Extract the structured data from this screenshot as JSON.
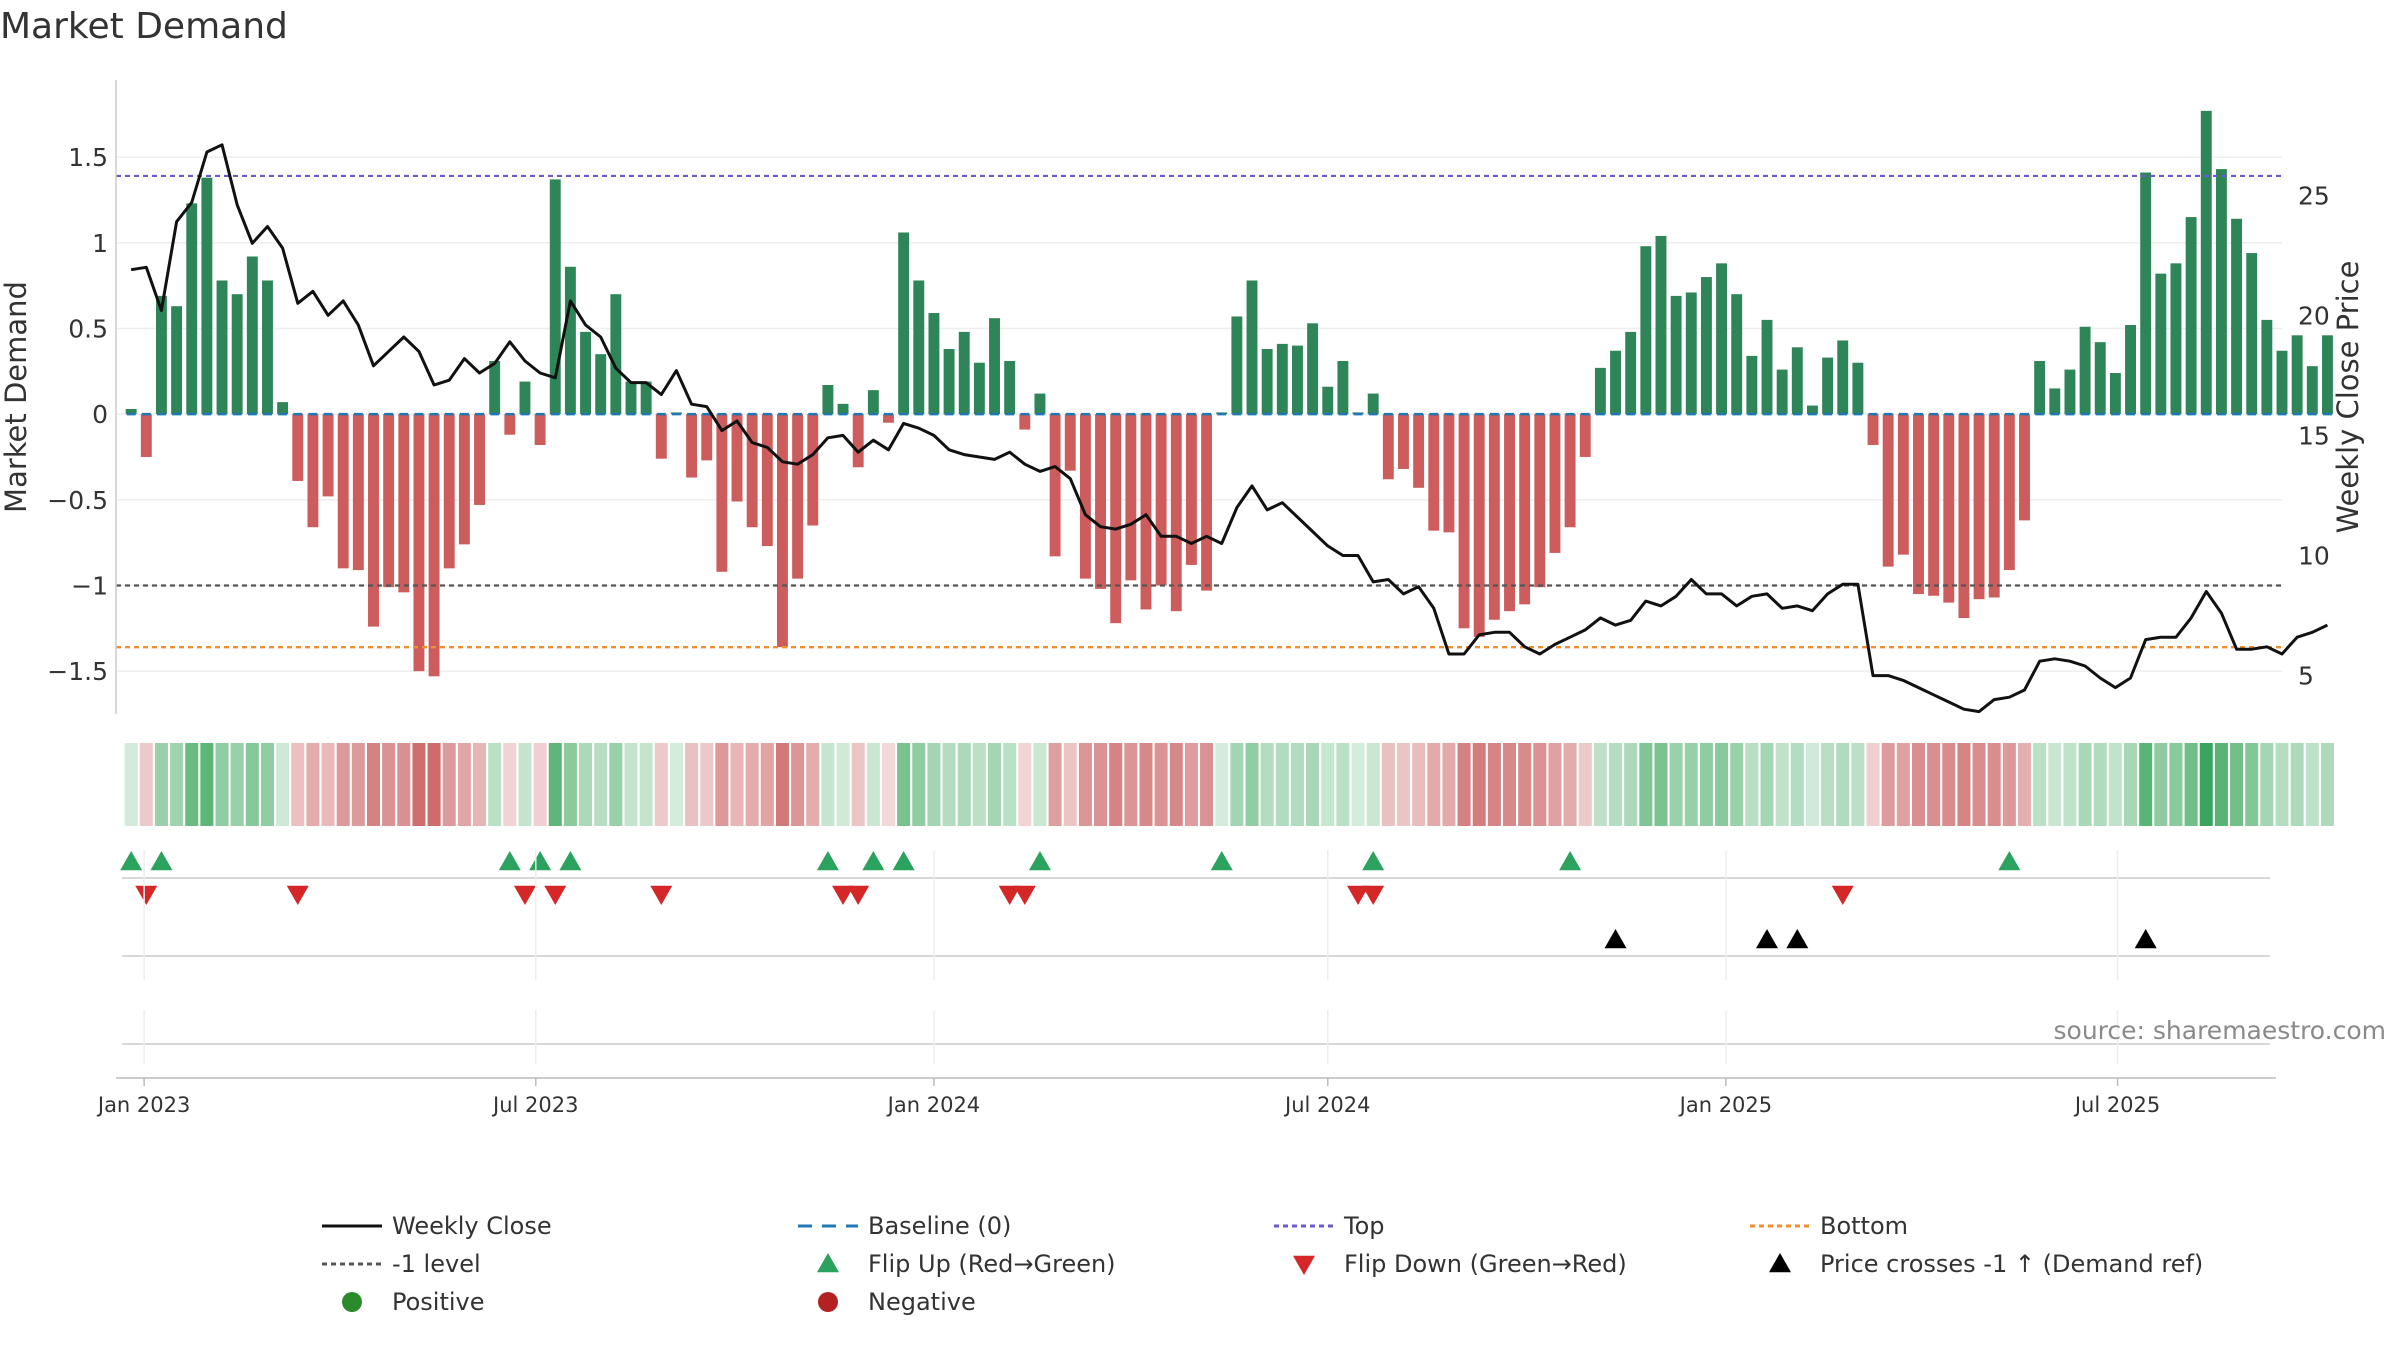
{
  "chart_data": {
    "type": "bar",
    "title": "Market Demand",
    "ylabel": "Market Demand",
    "y2label": "Weekly Close Price",
    "ylim": [
      -1.75,
      1.95
    ],
    "y2lim": [
      3.4,
      29.8
    ],
    "yticks": [
      {
        "v": 1.5,
        "label": "1.5"
      },
      {
        "v": 1,
        "label": "1"
      },
      {
        "v": 0.5,
        "label": "0.5"
      },
      {
        "v": 0,
        "label": "0"
      },
      {
        "v": -0.5,
        "label": "−0.5"
      },
      {
        "v": -1,
        "label": "−1"
      },
      {
        "v": -1.5,
        "label": "−1.5"
      }
    ],
    "y2ticks": [
      {
        "v": 25,
        "label": "25"
      },
      {
        "v": 20,
        "label": "20"
      },
      {
        "v": 15,
        "label": "15"
      },
      {
        "v": 10,
        "label": "10"
      },
      {
        "v": 5,
        "label": "5"
      }
    ],
    "xrange": [
      "2022-12-19",
      "2025-09-15"
    ],
    "xticks": [
      {
        "date": "2023-01-01",
        "label": "Jan 2023"
      },
      {
        "date": "2023-07-01",
        "label": "Jul 2023"
      },
      {
        "date": "2024-01-01",
        "label": "Jan 2024"
      },
      {
        "date": "2024-07-01",
        "label": "Jul 2024"
      },
      {
        "date": "2025-01-01",
        "label": "Jan 2025"
      },
      {
        "date": "2025-07-01",
        "label": "Jul 2025"
      }
    ],
    "start_week": "2022-12-26",
    "demand": [
      0.03,
      -0.25,
      0.69,
      0.63,
      1.23,
      1.38,
      0.78,
      0.7,
      0.92,
      0.78,
      0.07,
      -0.39,
      -0.66,
      -0.48,
      -0.9,
      -0.91,
      -1.24,
      -1.01,
      -1.04,
      -1.5,
      -1.53,
      -0.9,
      -0.76,
      -0.53,
      0.31,
      -0.12,
      0.19,
      -0.18,
      1.37,
      0.86,
      0.48,
      0.35,
      0.7,
      0.19,
      0.19,
      -0.26,
      0.01,
      -0.37,
      -0.27,
      -0.92,
      -0.51,
      -0.66,
      -0.77,
      -1.36,
      -0.96,
      -0.65,
      0.17,
      0.06,
      -0.31,
      0.14,
      -0.05,
      1.06,
      0.78,
      0.59,
      0.38,
      0.48,
      0.3,
      0.56,
      0.31,
      -0.09,
      0.12,
      -0.83,
      -0.33,
      -0.96,
      -1.02,
      -1.22,
      -0.97,
      -1.14,
      -1.0,
      -1.15,
      -0.88,
      -1.03,
      0.01,
      0.57,
      0.78,
      0.38,
      0.41,
      0.4,
      0.53,
      0.16,
      0.31,
      0.01,
      0.12,
      -0.38,
      -0.32,
      -0.43,
      -0.68,
      -0.69,
      -1.25,
      -1.3,
      -1.2,
      -1.15,
      -1.11,
      -1.01,
      -0.81,
      -0.66,
      -0.25,
      0.27,
      0.37,
      0.48,
      0.98,
      1.04,
      0.69,
      0.71,
      0.8,
      0.88,
      0.7,
      0.34,
      0.55,
      0.26,
      0.39,
      0.05,
      0.33,
      0.43,
      0.3,
      -0.18,
      -0.89,
      -0.82,
      -1.05,
      -1.06,
      -1.1,
      -1.19,
      -1.08,
      -1.07,
      -0.91,
      -0.62,
      0.31,
      0.15,
      0.26,
      0.51,
      0.42,
      0.24,
      0.52,
      1.41,
      0.82,
      0.88,
      1.15,
      1.77,
      1.43,
      1.14,
      0.94,
      0.55,
      0.37,
      0.46,
      0.28,
      0.46
    ],
    "close": [
      21.9,
      22.0,
      20.2,
      23.9,
      24.7,
      26.8,
      27.1,
      24.6,
      23.0,
      23.7,
      22.8,
      20.5,
      21.0,
      20.0,
      20.6,
      19.6,
      17.9,
      18.5,
      19.1,
      18.5,
      17.1,
      17.3,
      18.2,
      17.6,
      18.0,
      18.9,
      18.1,
      17.6,
      17.4,
      20.6,
      19.6,
      19.1,
      17.8,
      17.2,
      17.2,
      16.7,
      17.7,
      16.3,
      16.2,
      15.2,
      15.6,
      14.7,
      14.5,
      13.9,
      13.8,
      14.2,
      14.9,
      15.0,
      14.3,
      14.8,
      14.4,
      15.5,
      15.3,
      15.0,
      14.4,
      14.2,
      14.1,
      14.0,
      14.3,
      13.8,
      13.5,
      13.7,
      13.2,
      11.7,
      11.2,
      11.1,
      11.3,
      11.7,
      10.8,
      10.8,
      10.5,
      10.8,
      10.5,
      12.0,
      12.9,
      11.9,
      12.2,
      11.6,
      11.0,
      10.4,
      10.0,
      10.0,
      8.9,
      9.0,
      8.4,
      8.7,
      7.8,
      5.9,
      5.9,
      6.7,
      6.8,
      6.8,
      6.2,
      5.9,
      6.3,
      6.6,
      6.9,
      7.4,
      7.1,
      7.3,
      8.1,
      7.9,
      8.3,
      9.0,
      8.4,
      8.4,
      7.9,
      8.3,
      8.4,
      7.8,
      7.9,
      7.7,
      8.4,
      8.8,
      8.8,
      5.0,
      5.0,
      4.8,
      4.5,
      4.2,
      3.9,
      3.6,
      3.5,
      4.0,
      4.1,
      4.4,
      5.6,
      5.7,
      5.6,
      5.4,
      4.9,
      4.5,
      4.9,
      6.5,
      6.6,
      6.6,
      7.4,
      8.5,
      7.6,
      6.1,
      6.1,
      6.2,
      5.9,
      6.6,
      6.8,
      7.1
    ],
    "levels": {
      "top": 1.39,
      "bottom": -1.36,
      "minus_one": -1.0,
      "baseline": 0
    },
    "flip_up_weeks": [
      0,
      2,
      25,
      27,
      29,
      46,
      49,
      51,
      60,
      72,
      82,
      95,
      124
    ],
    "flip_down_weeks": [
      1,
      11,
      26,
      28,
      35,
      47,
      48,
      58,
      59,
      81,
      82,
      113
    ],
    "price_cross_weeks": [
      98,
      108,
      110,
      133
    ]
  },
  "colors": {
    "positive_bar": "#2e8557",
    "negative_bar": "#cd5c5c",
    "close_line": "#111111",
    "baseline": "#1f77b4",
    "top_line": "#6a5acd",
    "bottom_line": "#f28e2b",
    "minus_one_line": "#555555",
    "flip_up": "#2ca25f",
    "flip_down": "#d62728",
    "price_cross": "#000000",
    "positive_dot": "#2b8a2b",
    "negative_dot": "#b22222"
  },
  "legend": [
    {
      "key": "close",
      "label": "Weekly Close",
      "symbol": "line-solid",
      "color": "#111111"
    },
    {
      "key": "baseline",
      "label": "Baseline (0)",
      "symbol": "line-dashed",
      "color": "#1f77b4"
    },
    {
      "key": "top",
      "label": "Top",
      "symbol": "line-dotted",
      "color": "#6a5acd"
    },
    {
      "key": "bottom",
      "label": "Bottom",
      "symbol": "line-dotted",
      "color": "#f28e2b"
    },
    {
      "key": "minus_one",
      "label": "-1 level",
      "symbol": "line-dotted",
      "color": "#555555"
    },
    {
      "key": "flip_up",
      "label": "Flip Up (Red→Green)",
      "symbol": "triangle-up",
      "color": "#2ca25f"
    },
    {
      "key": "flip_down",
      "label": "Flip Down (Green→Red)",
      "symbol": "triangle-down",
      "color": "#d62728"
    },
    {
      "key": "price_cross",
      "label": "Price crosses -1 ↑ (Demand ref)",
      "symbol": "triangle-up",
      "color": "#000000"
    },
    {
      "key": "positive",
      "label": "Positive",
      "symbol": "dot",
      "color": "#2b8a2b"
    },
    {
      "key": "negative",
      "label": "Negative",
      "symbol": "dot",
      "color": "#b22222"
    }
  ],
  "footer": {
    "source": "source: sharemaestro.com"
  }
}
